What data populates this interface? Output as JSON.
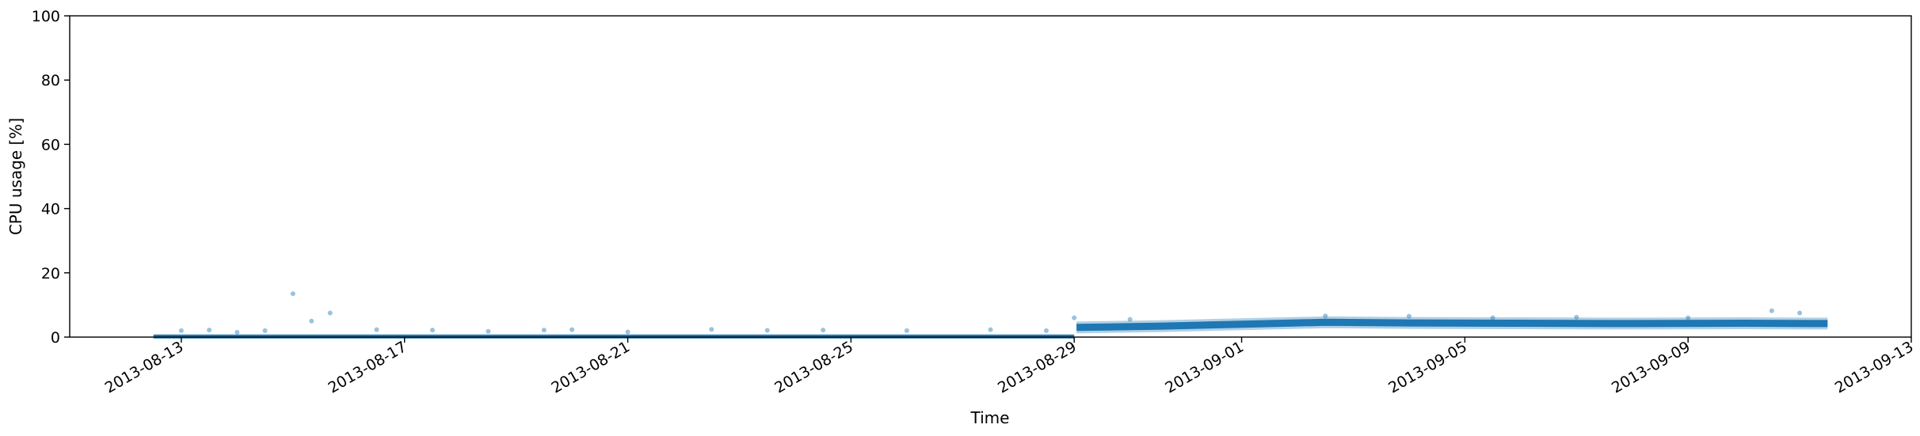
{
  "chart_data": {
    "type": "scatter",
    "title": "",
    "xlabel": "Time",
    "ylabel": "CPU usage [%]",
    "xlim": [
      "2013-08-11",
      "2013-09-13"
    ],
    "ylim": [
      0,
      100
    ],
    "grid": false,
    "legend": "none",
    "x_ticks": [
      "2013-08-13",
      "2013-08-17",
      "2013-08-21",
      "2013-08-25",
      "2013-08-29",
      "2013-09-01",
      "2013-09-05",
      "2013-09-09",
      "2013-09-13"
    ],
    "y_ticks": [
      0,
      20,
      40,
      60,
      80,
      100
    ],
    "series": [
      {
        "color": "#1f77b4",
        "segments": [
          {
            "start": "2013-08-12T12:00",
            "end": "2013-08-29T00:00",
            "level_start": 0.2,
            "level_end": 0.2
          },
          {
            "start": "2013-08-29T01:00",
            "end": "2013-09-11T12:00",
            "profile": [
              [
                "2013-08-29T01:00",
                3.0
              ],
              [
                "2013-08-30T12:00",
                3.4
              ],
              [
                "2013-09-01T00:00",
                4.0
              ],
              [
                "2013-09-02T12:00",
                4.6
              ],
              [
                "2013-09-04T00:00",
                4.4
              ],
              [
                "2013-09-06T00:00",
                4.3
              ],
              [
                "2013-09-08T00:00",
                4.2
              ],
              [
                "2013-09-10T00:00",
                4.3
              ],
              [
                "2013-09-11T12:00",
                4.2
              ]
            ]
          }
        ],
        "outliers": [
          {
            "x": "2013-08-15T00:00",
            "y": 13.5
          },
          {
            "x": "2013-08-15T08:00",
            "y": 5.0
          },
          {
            "x": "2013-08-15T16:00",
            "y": 7.5
          },
          {
            "x": "2013-08-13T00:00",
            "y": 2.0
          },
          {
            "x": "2013-08-13T12:00",
            "y": 2.2
          },
          {
            "x": "2013-08-14T00:00",
            "y": 1.5
          },
          {
            "x": "2013-08-14T12:00",
            "y": 2.0
          },
          {
            "x": "2013-08-16T12:00",
            "y": 2.3
          },
          {
            "x": "2013-08-17T12:00",
            "y": 2.2
          },
          {
            "x": "2013-08-18T12:00",
            "y": 1.8
          },
          {
            "x": "2013-08-19T12:00",
            "y": 2.2
          },
          {
            "x": "2013-08-20T00:00",
            "y": 2.3
          },
          {
            "x": "2013-08-21T00:00",
            "y": 1.6
          },
          {
            "x": "2013-08-22T12:00",
            "y": 2.4
          },
          {
            "x": "2013-08-23T12:00",
            "y": 2.1
          },
          {
            "x": "2013-08-24T12:00",
            "y": 2.2
          },
          {
            "x": "2013-08-26T00:00",
            "y": 2.0
          },
          {
            "x": "2013-08-27T12:00",
            "y": 2.3
          },
          {
            "x": "2013-08-28T12:00",
            "y": 2.0
          },
          {
            "x": "2013-08-29T00:00",
            "y": 6.0
          },
          {
            "x": "2013-08-30T00:00",
            "y": 5.5
          },
          {
            "x": "2013-09-02T12:00",
            "y": 6.6
          },
          {
            "x": "2013-09-04T00:00",
            "y": 6.5
          },
          {
            "x": "2013-09-05T12:00",
            "y": 6.0
          },
          {
            "x": "2013-09-07T00:00",
            "y": 6.2
          },
          {
            "x": "2013-09-09T00:00",
            "y": 6.0
          },
          {
            "x": "2013-09-10T12:00",
            "y": 8.2
          },
          {
            "x": "2013-09-11T00:00",
            "y": 7.5
          }
        ]
      }
    ]
  }
}
